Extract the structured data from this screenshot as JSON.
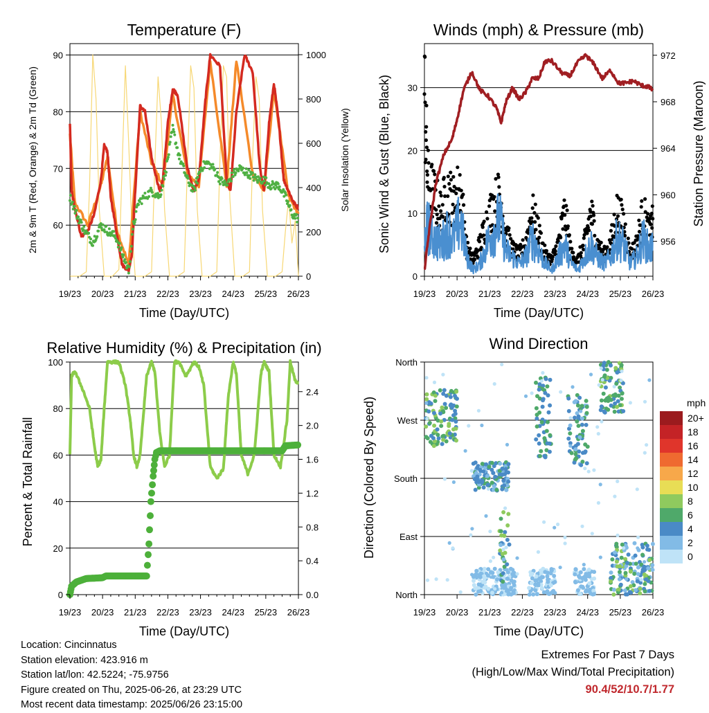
{
  "panels": {
    "temperature": {
      "title": "Temperature (F)",
      "left_label": "2m & 9m T (Red, Orange) & 2m Td (Green)",
      "right_label": "Solar Insolation (Yellow)",
      "xlabel": "Time (Day/UTC)"
    },
    "winds": {
      "title": "Winds (mph) & Pressure (mb)",
      "left_label": "Sonic Wind & Gust (Blue, Black)",
      "right_label": "Station Pressure (Maroon)",
      "xlabel": "Time (Day/UTC)"
    },
    "humidity": {
      "title": "Relative Humidity (%) & Precipitation (in)",
      "left_label": "Percent & Total Rainfall",
      "xlabel": "Time (Day/UTC)"
    },
    "direction": {
      "title": "Wind Direction",
      "left_label": "Direction (Colored By Speed)",
      "xlabel": "Time (Day/UTC)",
      "legend_title": "mph"
    }
  },
  "info": {
    "location": "Location: Cincinnatus",
    "elevation": "Station elevation: 423.916 m",
    "latlon": "Station lat/lon: 42.5224; -75.9756",
    "created": "Figure created on Thu, 2025-06-26, at 23:29 UTC",
    "recent": "Most recent data timestamp: 2025/06/26 23:15:00"
  },
  "extremes": {
    "title": "Extremes For Past 7 Days",
    "subtitle": "(High/Low/Max Wind/Total Precipitation)",
    "values": "90.4/52/10.7/1.77"
  },
  "colors": {
    "temp_2m": "#d42a20",
    "temp_9m": "#f58a2a",
    "dewpoint": "#4fb043",
    "solar": "#f7d774",
    "wind": "#4a8fd0",
    "gust": "#000000",
    "pressure": "#a01e22",
    "rh": "#8ccc4a",
    "precip": "#4db03a"
  },
  "chart_data": [
    {
      "type": "line",
      "title": "Temperature (F)",
      "xlabel": "Time (Day/UTC)",
      "ylabel": "2m & 9m T (Red, Orange) & 2m Td (Green)",
      "y2label": "Solar Insolation (Yellow)",
      "x_ticks": [
        "19/23",
        "20/23",
        "21/23",
        "22/23",
        "23/23",
        "24/23",
        "25/23",
        "26/23"
      ],
      "xlim": [
        0,
        7
      ],
      "ylim": [
        51,
        92
      ],
      "y_ticks": [
        60,
        70,
        80,
        90
      ],
      "y2lim": [
        0,
        1050
      ],
      "y2_ticks": [
        0,
        200,
        400,
        600,
        800,
        1000
      ],
      "grid": "horizontal",
      "series": [
        {
          "name": "2m T",
          "axis": "left",
          "color": "#d42a20",
          "x": [
            0,
            0.05,
            0.15,
            0.35,
            0.55,
            0.75,
            0.95,
            1.05,
            1.15,
            1.25,
            1.45,
            1.6,
            1.8,
            1.9,
            2.0,
            2.15,
            2.3,
            2.5,
            2.75,
            2.85,
            3.0,
            3.15,
            3.3,
            3.6,
            3.8,
            3.95,
            4.15,
            4.3,
            4.6,
            4.8,
            4.92,
            5.1,
            5.35,
            5.6,
            5.82,
            5.95,
            6.1,
            6.25,
            6.4,
            6.55,
            6.7,
            6.85,
            7.0
          ],
          "y": [
            78,
            66,
            63,
            58,
            59,
            62,
            68,
            74,
            73,
            65,
            58,
            53,
            52,
            55,
            66,
            81,
            80,
            72,
            66,
            68,
            78,
            84,
            83,
            70,
            66,
            68,
            82,
            90,
            88,
            68,
            66,
            80,
            90,
            87,
            70,
            66,
            78,
            85,
            78,
            68,
            66,
            64,
            63
          ]
        },
        {
          "name": "9m T",
          "axis": "left",
          "color": "#f58a2a",
          "x": [
            0,
            0.15,
            0.55,
            0.95,
            1.15,
            1.45,
            1.8,
            2.15,
            2.5,
            2.85,
            3.15,
            3.6,
            3.95,
            4.3,
            4.8,
            5.1,
            5.6,
            5.95,
            6.25,
            6.7,
            7.0
          ],
          "y": [
            76,
            64,
            60,
            67,
            72,
            59,
            53,
            80,
            71,
            67,
            83,
            69,
            67,
            89,
            67,
            89,
            69,
            66,
            84,
            65,
            62
          ]
        },
        {
          "name": "2m Td",
          "axis": "left",
          "color": "#4fb043",
          "x": [
            0,
            0.2,
            0.45,
            0.7,
            0.95,
            1.15,
            1.4,
            1.6,
            1.8,
            1.95,
            2.1,
            2.3,
            2.5,
            2.75,
            2.95,
            3.15,
            3.35,
            3.6,
            3.8,
            4.0,
            4.2,
            4.4,
            4.6,
            4.8,
            5.0,
            5.2,
            5.5,
            5.75,
            5.95,
            6.15,
            6.4,
            6.6,
            6.8,
            7.0
          ],
          "y": [
            65,
            62,
            59,
            57,
            60,
            59,
            58,
            55,
            52,
            60,
            64,
            65,
            66,
            65,
            70,
            77,
            72,
            68,
            66,
            70,
            71,
            70,
            68,
            67,
            69,
            70,
            69,
            68,
            68,
            67,
            67,
            65,
            62,
            61
          ]
        },
        {
          "name": "Solar Insolation",
          "axis": "right",
          "color": "#f7d774",
          "x": [
            0,
            0.3,
            0.5,
            0.6,
            0.7,
            0.8,
            0.9,
            1.05,
            1.1,
            1.3,
            1.5,
            1.6,
            1.7,
            1.8,
            1.9,
            2.0,
            2.3,
            2.5,
            2.6,
            2.7,
            2.8,
            2.9,
            3.05,
            3.3,
            3.5,
            3.6,
            3.7,
            3.8,
            3.9,
            4.05,
            4.3,
            4.5,
            4.6,
            4.7,
            4.8,
            4.9,
            5.05,
            5.3,
            5.5,
            5.6,
            5.7,
            5.8,
            5.9,
            6.05,
            6.3,
            6.5,
            6.6,
            6.7,
            6.8,
            6.9,
            7.0
          ],
          "y": [
            0,
            0,
            20,
            400,
            1000,
            800,
            300,
            0,
            0,
            0,
            30,
            500,
            950,
            600,
            200,
            0,
            0,
            20,
            500,
            900,
            700,
            300,
            0,
            0,
            20,
            500,
            950,
            850,
            300,
            0,
            0,
            20,
            550,
            950,
            900,
            350,
            0,
            0,
            20,
            550,
            900,
            800,
            300,
            0,
            0,
            20,
            200,
            350,
            150,
            250,
            0
          ]
        }
      ]
    },
    {
      "type": "line",
      "title": "Winds (mph) & Pressure (mb)",
      "xlabel": "Time (Day/UTC)",
      "ylabel": "Sonic Wind & Gust (Blue, Black)",
      "y2label": "Station Pressure (Maroon)",
      "x_ticks": [
        "19/23",
        "20/23",
        "21/23",
        "22/23",
        "23/23",
        "24/23",
        "25/23",
        "26/23"
      ],
      "xlim": [
        0,
        7
      ],
      "ylim": [
        0,
        37
      ],
      "y_ticks": [
        0,
        10,
        20,
        30
      ],
      "y2lim": [
        953,
        973
      ],
      "y2_ticks": [
        956,
        960,
        964,
        968,
        972
      ],
      "grid": "horizontal",
      "series": [
        {
          "name": "Sonic Wind",
          "axis": "left",
          "color": "#4a8fd0",
          "x": [
            0,
            0.1,
            0.3,
            0.5,
            0.7,
            0.9,
            1.1,
            1.3,
            1.5,
            1.7,
            1.9,
            2.1,
            2.3,
            2.5,
            2.7,
            2.9,
            3.1,
            3.3,
            3.5,
            3.7,
            3.9,
            4.1,
            4.3,
            4.5,
            4.7,
            4.9,
            5.1,
            5.3,
            5.5,
            5.7,
            5.9,
            6.1,
            6.3,
            6.5,
            6.7,
            6.9,
            7.0
          ],
          "y": [
            5,
            8,
            6,
            5,
            7,
            6,
            9,
            3,
            1,
            2,
            5,
            7,
            9,
            4,
            3,
            2,
            3,
            6,
            4,
            2,
            1,
            3,
            5,
            2,
            1,
            3,
            5,
            3,
            2,
            3,
            6,
            5,
            2,
            3,
            6,
            4,
            5
          ]
        },
        {
          "name": "Gust",
          "axis": "left",
          "color": "#000000",
          "x": [
            0,
            0.1,
            0.3,
            0.5,
            0.7,
            0.9,
            1.1,
            1.3,
            1.5,
            1.7,
            1.9,
            2.1,
            2.3,
            2.5,
            2.7,
            2.9,
            3.1,
            3.3,
            3.5,
            3.7,
            3.9,
            4.1,
            4.3,
            4.5,
            4.7,
            4.9,
            5.1,
            5.3,
            5.5,
            5.7,
            5.9,
            6.1,
            6.3,
            6.5,
            6.7,
            6.9,
            7.0
          ],
          "y": [
            35,
            18,
            15,
            12,
            16,
            14,
            17,
            5,
            3,
            6,
            10,
            13,
            15,
            8,
            5,
            4,
            6,
            12,
            8,
            4,
            3,
            6,
            12,
            4,
            3,
            6,
            12,
            6,
            4,
            6,
            12,
            10,
            4,
            6,
            12,
            8,
            10
          ]
        },
        {
          "name": "Station Pressure",
          "axis": "right",
          "color": "#a01e22",
          "x": [
            0,
            0.15,
            0.35,
            0.6,
            0.85,
            1.0,
            1.2,
            1.45,
            1.7,
            1.95,
            2.2,
            2.35,
            2.5,
            2.7,
            2.9,
            3.1,
            3.3,
            3.5,
            3.7,
            3.9,
            4.2,
            4.45,
            4.7,
            4.95,
            5.2,
            5.45,
            5.7,
            5.95,
            6.15,
            6.4,
            6.65,
            6.85,
            7.0
          ],
          "y": [
            953.5,
            957,
            961,
            963.5,
            964.8,
            966.5,
            969,
            970.6,
            969,
            968.5,
            967.5,
            966.2,
            968,
            969.2,
            968.2,
            968.8,
            970,
            970,
            971.5,
            971.5,
            970.5,
            970.2,
            971.4,
            972,
            971.2,
            970,
            970.7,
            969.6,
            969.6,
            969.8,
            969.4,
            969.3,
            969
          ]
        }
      ]
    },
    {
      "type": "line",
      "title": "Relative Humidity (%) & Precipitation (in)",
      "xlabel": "Time (Day/UTC)",
      "ylabel": "Percent & Total Rainfall",
      "x_ticks": [
        "19/23",
        "20/23",
        "21/23",
        "22/23",
        "23/23",
        "24/23",
        "25/23",
        "26/23"
      ],
      "xlim": [
        0,
        7
      ],
      "ylim": [
        0,
        100
      ],
      "y_ticks": [
        0,
        20,
        40,
        60,
        80,
        100
      ],
      "y2lim": [
        0,
        2.75
      ],
      "y2_ticks": [
        0.0,
        0.4,
        0.8,
        1.2,
        1.6,
        2.0,
        2.4
      ],
      "grid": "horizontal",
      "series": [
        {
          "name": "Relative Humidity",
          "axis": "left",
          "color": "#8ccc4a",
          "x": [
            0,
            0.05,
            0.15,
            0.4,
            0.6,
            0.75,
            0.85,
            0.95,
            1.05,
            1.15,
            1.3,
            1.5,
            1.7,
            1.85,
            1.95,
            2.05,
            2.15,
            2.35,
            2.5,
            2.6,
            2.75,
            2.9,
            3.05,
            3.2,
            3.35,
            3.55,
            3.8,
            3.95,
            4.1,
            4.3,
            4.5,
            4.7,
            4.85,
            5.0,
            5.1,
            5.25,
            5.45,
            5.65,
            5.85,
            5.95,
            6.1,
            6.25,
            6.45,
            6.65,
            6.75,
            6.9,
            7.0
          ],
          "y": [
            60,
            94,
            96,
            88,
            80,
            64,
            55,
            58,
            80,
            100,
            100,
            100,
            90,
            75,
            60,
            55,
            60,
            94,
            100,
            96,
            70,
            55,
            60,
            100,
            100,
            94,
            100,
            98,
            90,
            55,
            50,
            54,
            85,
            100,
            95,
            60,
            52,
            60,
            95,
            100,
            96,
            60,
            55,
            75,
            100,
            92,
            91
          ]
        },
        {
          "name": "Total Rainfall",
          "axis": "right",
          "color": "#4db03a",
          "x": [
            0,
            0.05,
            0.2,
            0.5,
            1.0,
            1.1,
            1.5,
            2.0,
            2.35,
            2.42,
            2.48,
            2.55,
            2.6,
            2.65,
            2.75,
            3.0,
            6.5,
            6.6,
            7.0
          ],
          "y": [
            0.0,
            0.1,
            0.15,
            0.19,
            0.2,
            0.22,
            0.22,
            0.22,
            0.22,
            0.6,
            1.1,
            1.4,
            1.6,
            1.68,
            1.7,
            1.7,
            1.7,
            1.76,
            1.77
          ]
        }
      ]
    },
    {
      "type": "scatter",
      "title": "Wind Direction",
      "xlabel": "Time (Day/UTC)",
      "ylabel": "Direction (Colored By Speed)",
      "x_ticks": [
        "19/23",
        "20/23",
        "21/23",
        "22/23",
        "23/23",
        "24/23",
        "25/23",
        "26/23"
      ],
      "xlim": [
        0,
        7
      ],
      "ylim": [
        0,
        360
      ],
      "y_ticks": [
        "North",
        "East",
        "South",
        "West",
        "North"
      ],
      "grid": "horizontal",
      "legend": {
        "title": "mph",
        "placement": "right",
        "labels": [
          "20+",
          "18",
          "16",
          "14",
          "12",
          "10",
          "8",
          "6",
          "4",
          "2",
          "0"
        ],
        "colors": [
          "#9b1b1e",
          "#c42326",
          "#e0352b",
          "#ef6a30",
          "#f7a84a",
          "#e8dd55",
          "#8fca5e",
          "#4fa96a",
          "#4a8ac6",
          "#82bbe6",
          "#bfe3f7"
        ]
      },
      "clusters": [
        {
          "x": [
            0,
            1.0
          ],
          "y": [
            230,
            320
          ],
          "speed": [
            3,
            9
          ]
        },
        {
          "x": [
            1.5,
            2.6
          ],
          "y": [
            160,
            205
          ],
          "speed": [
            2,
            6
          ]
        },
        {
          "x": [
            1.5,
            2.8
          ],
          "y": [
            0,
            40
          ],
          "speed": [
            0,
            3
          ]
        },
        {
          "x": [
            2.3,
            2.6
          ],
          "y": [
            20,
            130
          ],
          "speed": [
            2,
            9
          ]
        },
        {
          "x": [
            3.4,
            3.9
          ],
          "y": [
            210,
            340
          ],
          "speed": [
            3,
            7
          ]
        },
        {
          "x": [
            3.2,
            4.0
          ],
          "y": [
            0,
            40
          ],
          "speed": [
            0,
            3
          ]
        },
        {
          "x": [
            4.4,
            5.0
          ],
          "y": [
            200,
            310
          ],
          "speed": [
            2,
            7
          ]
        },
        {
          "x": [
            4.6,
            5.2
          ],
          "y": [
            0,
            40
          ],
          "speed": [
            0,
            3
          ]
        },
        {
          "x": [
            5.4,
            6.1
          ],
          "y": [
            280,
            360
          ],
          "speed": [
            3,
            8
          ]
        },
        {
          "x": [
            5.7,
            7.0
          ],
          "y": [
            0,
            80
          ],
          "speed": [
            1,
            8
          ]
        }
      ]
    }
  ]
}
